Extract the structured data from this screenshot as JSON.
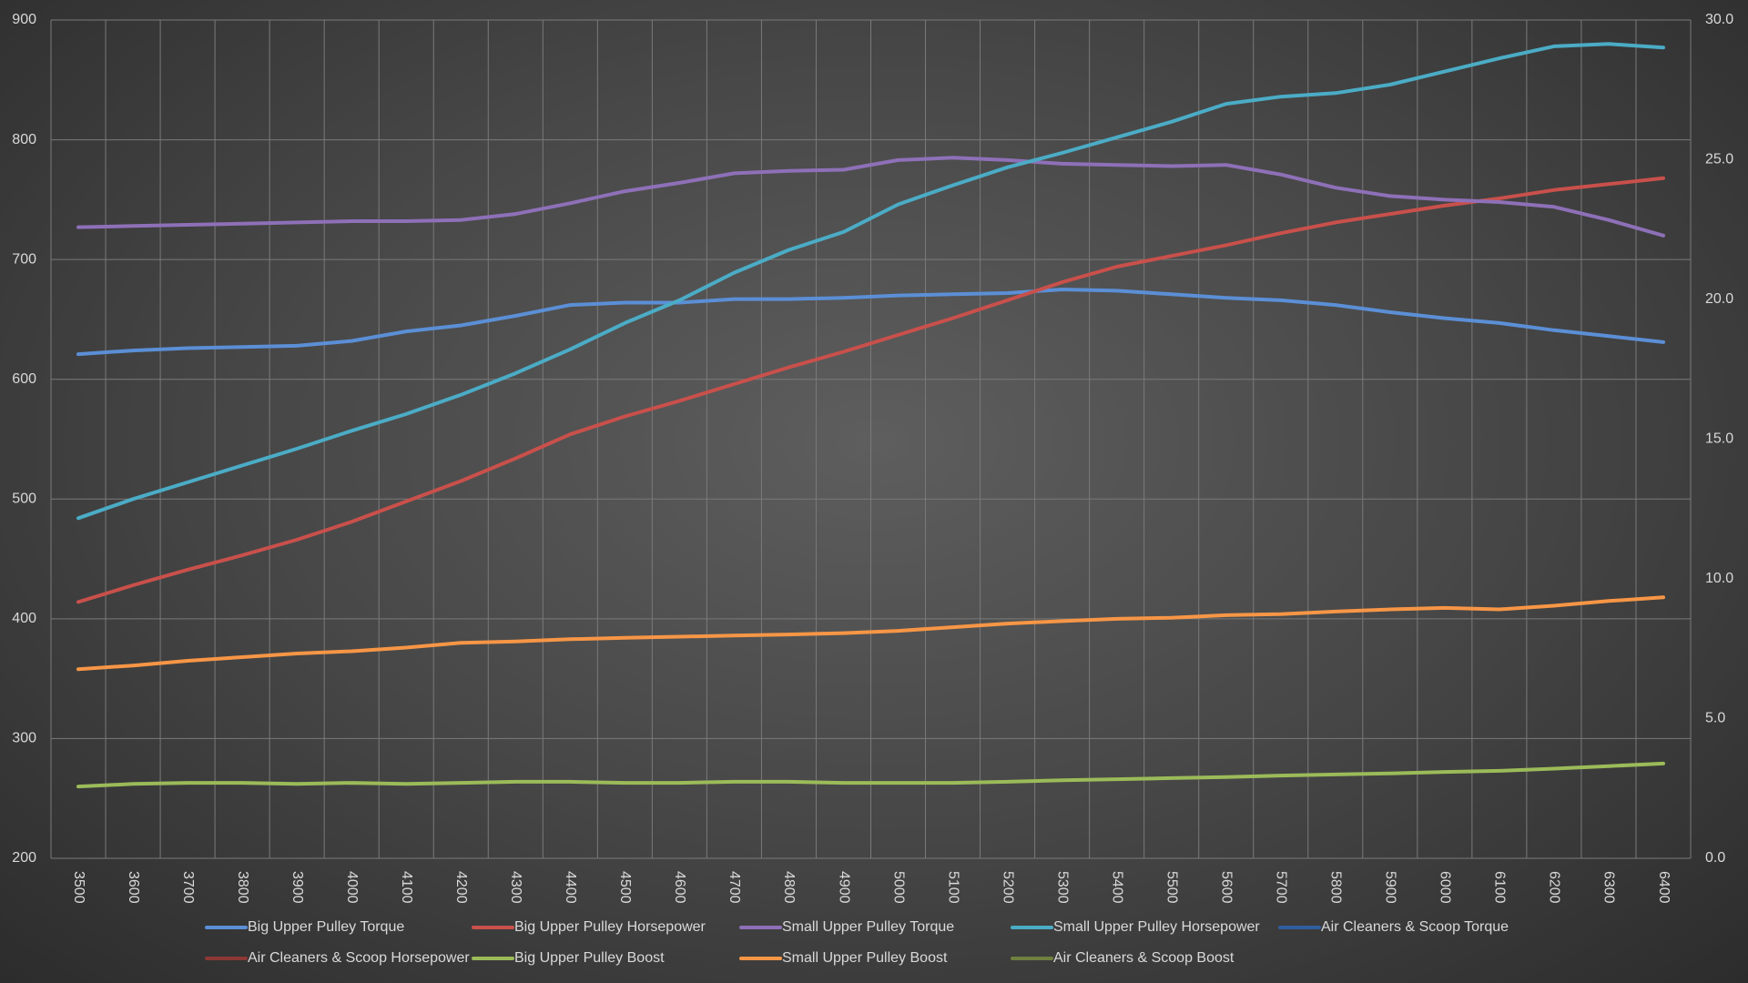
{
  "chart_data": {
    "type": "line",
    "categories": [
      "3500",
      "3600",
      "3700",
      "3800",
      "3900",
      "4000",
      "4100",
      "4200",
      "4300",
      "4400",
      "4500",
      "4600",
      "4700",
      "4800",
      "4900",
      "5000",
      "5100",
      "5200",
      "5300",
      "5400",
      "5500",
      "5600",
      "5700",
      "5800",
      "5900",
      "6000",
      "6100",
      "6200",
      "6300",
      "6400"
    ],
    "ylim": [
      200,
      900
    ],
    "yticks": [
      200,
      300,
      400,
      500,
      600,
      700,
      800,
      900
    ],
    "y2lim": [
      0,
      30
    ],
    "y2ticks": [
      {
        "value": 0,
        "label": "0.0"
      },
      {
        "value": 5,
        "label": "5.0"
      },
      {
        "value": 10,
        "label": "10.0"
      },
      {
        "value": 15,
        "label": "15.0"
      },
      {
        "value": 20,
        "label": "20.0"
      },
      {
        "value": 25,
        "label": "25.0"
      },
      {
        "value": 30,
        "label": "30.0"
      }
    ],
    "grid": true,
    "legend": "bottom",
    "series": [
      {
        "name": "Big Upper Pulley Torque",
        "color": "#5b8fd6",
        "values": [
          621,
          624,
          626,
          627,
          628,
          632,
          640,
          645,
          653,
          662,
          664,
          664,
          667,
          667,
          668,
          670,
          671,
          672,
          675,
          674,
          671,
          668,
          666,
          662,
          656,
          651,
          647,
          641,
          636,
          631
        ]
      },
      {
        "name": "Big Upper Pulley Horsepower",
        "color": "#c9504b",
        "values": [
          414,
          428,
          441,
          453,
          466,
          481,
          498,
          515,
          534,
          554,
          569,
          582,
          596,
          610,
          623,
          637,
          651,
          666,
          681,
          694,
          703,
          712,
          722,
          731,
          738,
          745,
          751,
          758,
          763,
          768
        ]
      },
      {
        "name": "Small Upper Pulley Torque",
        "color": "#8e70b8",
        "values": [
          727,
          728,
          729,
          730,
          731,
          732,
          732,
          733,
          738,
          747,
          757,
          764,
          772,
          774,
          775,
          783,
          785,
          783,
          780,
          779,
          778,
          779,
          771,
          760,
          753,
          750,
          748,
          744,
          733,
          720
        ]
      },
      {
        "name": "Small Upper Pulley Horsepower",
        "color": "#4bacc6",
        "values": [
          484,
          500,
          514,
          528,
          542,
          557,
          571,
          587,
          605,
          625,
          647,
          666,
          689,
          708,
          723,
          746,
          762,
          777,
          789,
          802,
          815,
          830,
          836,
          839,
          846,
          857,
          868,
          878,
          880,
          877
        ]
      },
      {
        "name": "Air Cleaners & Scoop Torque",
        "color": "#2f5f9e",
        "values": [
          null,
          null,
          null,
          null,
          null,
          null,
          null,
          null,
          null,
          null,
          null,
          null,
          null,
          null,
          null,
          null,
          null,
          null,
          null,
          null,
          null,
          null,
          null,
          null,
          null,
          null,
          null,
          null,
          null,
          null
        ]
      },
      {
        "name": "Air Cleaners & Scoop Horsepower",
        "color": "#8c3836",
        "values": [
          null,
          null,
          null,
          null,
          null,
          null,
          null,
          null,
          null,
          null,
          null,
          null,
          null,
          null,
          null,
          null,
          null,
          null,
          null,
          null,
          null,
          null,
          null,
          null,
          null,
          null,
          null,
          null,
          null,
          null
        ]
      },
      {
        "name": "Big Upper Pulley Boost",
        "color": "#9bbb59",
        "axis": "y2",
        "values": [
          2.57,
          2.66,
          2.7,
          2.7,
          2.66,
          2.7,
          2.66,
          2.7,
          2.74,
          2.74,
          2.7,
          2.7,
          2.74,
          2.74,
          2.7,
          2.7,
          2.7,
          2.74,
          2.79,
          2.83,
          2.87,
          2.91,
          2.96,
          3.0,
          3.04,
          3.09,
          3.13,
          3.21,
          3.3,
          3.39
        ]
      },
      {
        "name": "Small Upper Pulley Boost",
        "color": "#f79646",
        "axis": "y2",
        "values": [
          6.77,
          6.9,
          7.07,
          7.2,
          7.33,
          7.41,
          7.54,
          7.71,
          7.76,
          7.84,
          7.89,
          7.93,
          7.97,
          8.01,
          8.06,
          8.14,
          8.27,
          8.4,
          8.49,
          8.57,
          8.61,
          8.7,
          8.74,
          8.83,
          8.91,
          8.96,
          8.91,
          9.04,
          9.21,
          9.34
        ]
      },
      {
        "name": "Air Cleaners & Scoop Boost",
        "color": "#6f7f3e",
        "axis": "y2",
        "values": [
          null,
          null,
          null,
          null,
          null,
          null,
          null,
          null,
          null,
          null,
          null,
          null,
          null,
          null,
          null,
          null,
          null,
          null,
          null,
          null,
          null,
          null,
          null,
          null,
          null,
          null,
          null,
          null,
          null,
          null
        ]
      }
    ]
  }
}
